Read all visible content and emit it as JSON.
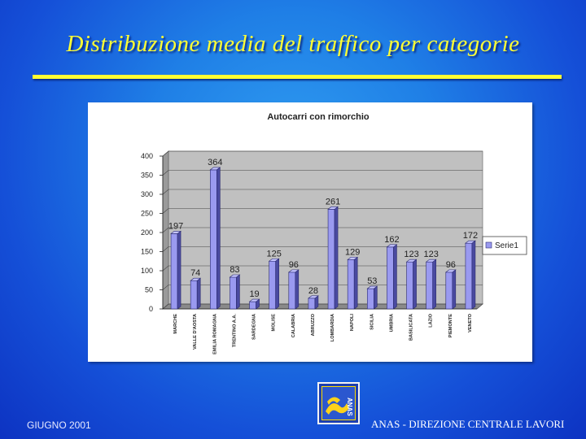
{
  "slide": {
    "title": "Distribuzione media del traffico per categorie",
    "footer_left": "GIUGNO 2001",
    "footer_right": "ANAS - DIREZIONE CENTRALE LAVORI",
    "logo_text": "ANAS"
  },
  "colors": {
    "background": "#1f7fe6",
    "title": "#ffff33",
    "bar_front": "#9a9af0",
    "bar_side": "#4a4aa0",
    "plot_wall": "#c0c0c0"
  },
  "chart_data": {
    "type": "bar",
    "title": "Autocarri con rimorchio",
    "categories": [
      "MARCHE",
      "VALLE D'AOSTA",
      "EMILIA ROMAGNA",
      "TRENTINO A.A.",
      "SARDEGNA",
      "MOLISE",
      "CALABRIA",
      "ABRUZZO",
      "LOMBARDIA",
      "NAPOLI",
      "SICILIA",
      "UMBRIA",
      "BASILICATA",
      "LAZIO",
      "PIEMONTE",
      "VENETO"
    ],
    "series": [
      {
        "name": "Serie1",
        "values": [
          197,
          74,
          364,
          83,
          19,
          125,
          96,
          28,
          261,
          129,
          53,
          162,
          123,
          123,
          96,
          172
        ]
      }
    ],
    "yticks": [
      "0",
      "50",
      "100",
      "150",
      "200",
      "250",
      "300",
      "350",
      "400"
    ],
    "ylim": [
      0,
      400
    ],
    "xlabel": "",
    "ylabel": "",
    "legend_position": "right",
    "grid": true,
    "style": "3d"
  }
}
